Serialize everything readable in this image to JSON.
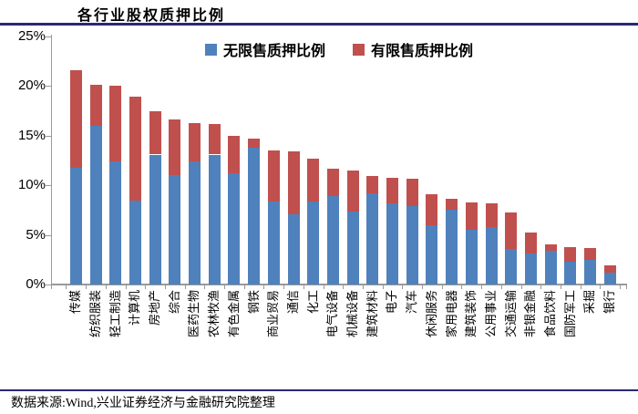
{
  "title": "各行业股权质押比例",
  "footer": "数据来源:Wind,兴业证券经济与金融研究院整理",
  "colors": {
    "unrestricted_blue": "#4F81BD",
    "restricted_red": "#C0504D",
    "rule_navy": "#2b2874",
    "axis_gray": "#999999"
  },
  "legend": [
    {
      "label": "无限售质押比例",
      "color": "#4F81BD"
    },
    {
      "label": "有限售质押比例",
      "color": "#C0504D"
    }
  ],
  "chart_data": {
    "type": "bar",
    "stacked": true,
    "title": "各行业股权质押比例",
    "xlabel": "",
    "ylabel": "",
    "ylim": [
      0,
      25
    ],
    "yticks": [
      "0%",
      "5%",
      "10%",
      "15%",
      "20%",
      "25%"
    ],
    "grid": false,
    "legend_position": "top-center",
    "categories": [
      "传媒",
      "纺织服装",
      "轻工制造",
      "计算机",
      "房地产",
      "综合",
      "医药生物",
      "农林牧渔",
      "有色金属",
      "钢铁",
      "商业贸易",
      "通信",
      "化工",
      "电气设备",
      "机械设备",
      "建筑材料",
      "电子",
      "汽车",
      "休闲服务",
      "家用电器",
      "建筑装饰",
      "公用事业",
      "交通运输",
      "非银金融",
      "食品饮料",
      "国防军工",
      "采掘",
      "银行"
    ],
    "series": [
      {
        "name": "无限售质押比例",
        "color": "#4F81BD",
        "values": [
          11.8,
          16.0,
          12.4,
          8.5,
          13.1,
          11.0,
          12.4,
          13.1,
          11.2,
          13.8,
          8.4,
          7.1,
          8.4,
          8.9,
          7.4,
          9.2,
          8.2,
          7.9,
          6.0,
          7.5,
          5.5,
          5.8,
          3.6,
          3.1,
          3.4,
          2.3,
          2.5,
          1.2
        ]
      },
      {
        "name": "有限售质押比例",
        "color": "#C0504D",
        "values": [
          9.8,
          4.1,
          7.6,
          10.4,
          4.4,
          5.6,
          3.9,
          3.1,
          3.8,
          0.9,
          5.1,
          6.3,
          4.3,
          2.8,
          4.1,
          1.7,
          2.6,
          2.8,
          3.1,
          1.1,
          2.8,
          2.4,
          3.7,
          2.1,
          0.6,
          1.5,
          1.2,
          0.7
        ]
      }
    ],
    "totals": [
      21.6,
      20.1,
      20.0,
      18.9,
      17.5,
      16.6,
      16.3,
      16.2,
      15.0,
      14.7,
      13.5,
      13.4,
      12.7,
      11.7,
      11.5,
      10.9,
      10.8,
      10.7,
      9.1,
      8.6,
      8.3,
      8.2,
      7.3,
      5.2,
      4.0,
      3.8,
      3.7,
      1.9
    ]
  }
}
